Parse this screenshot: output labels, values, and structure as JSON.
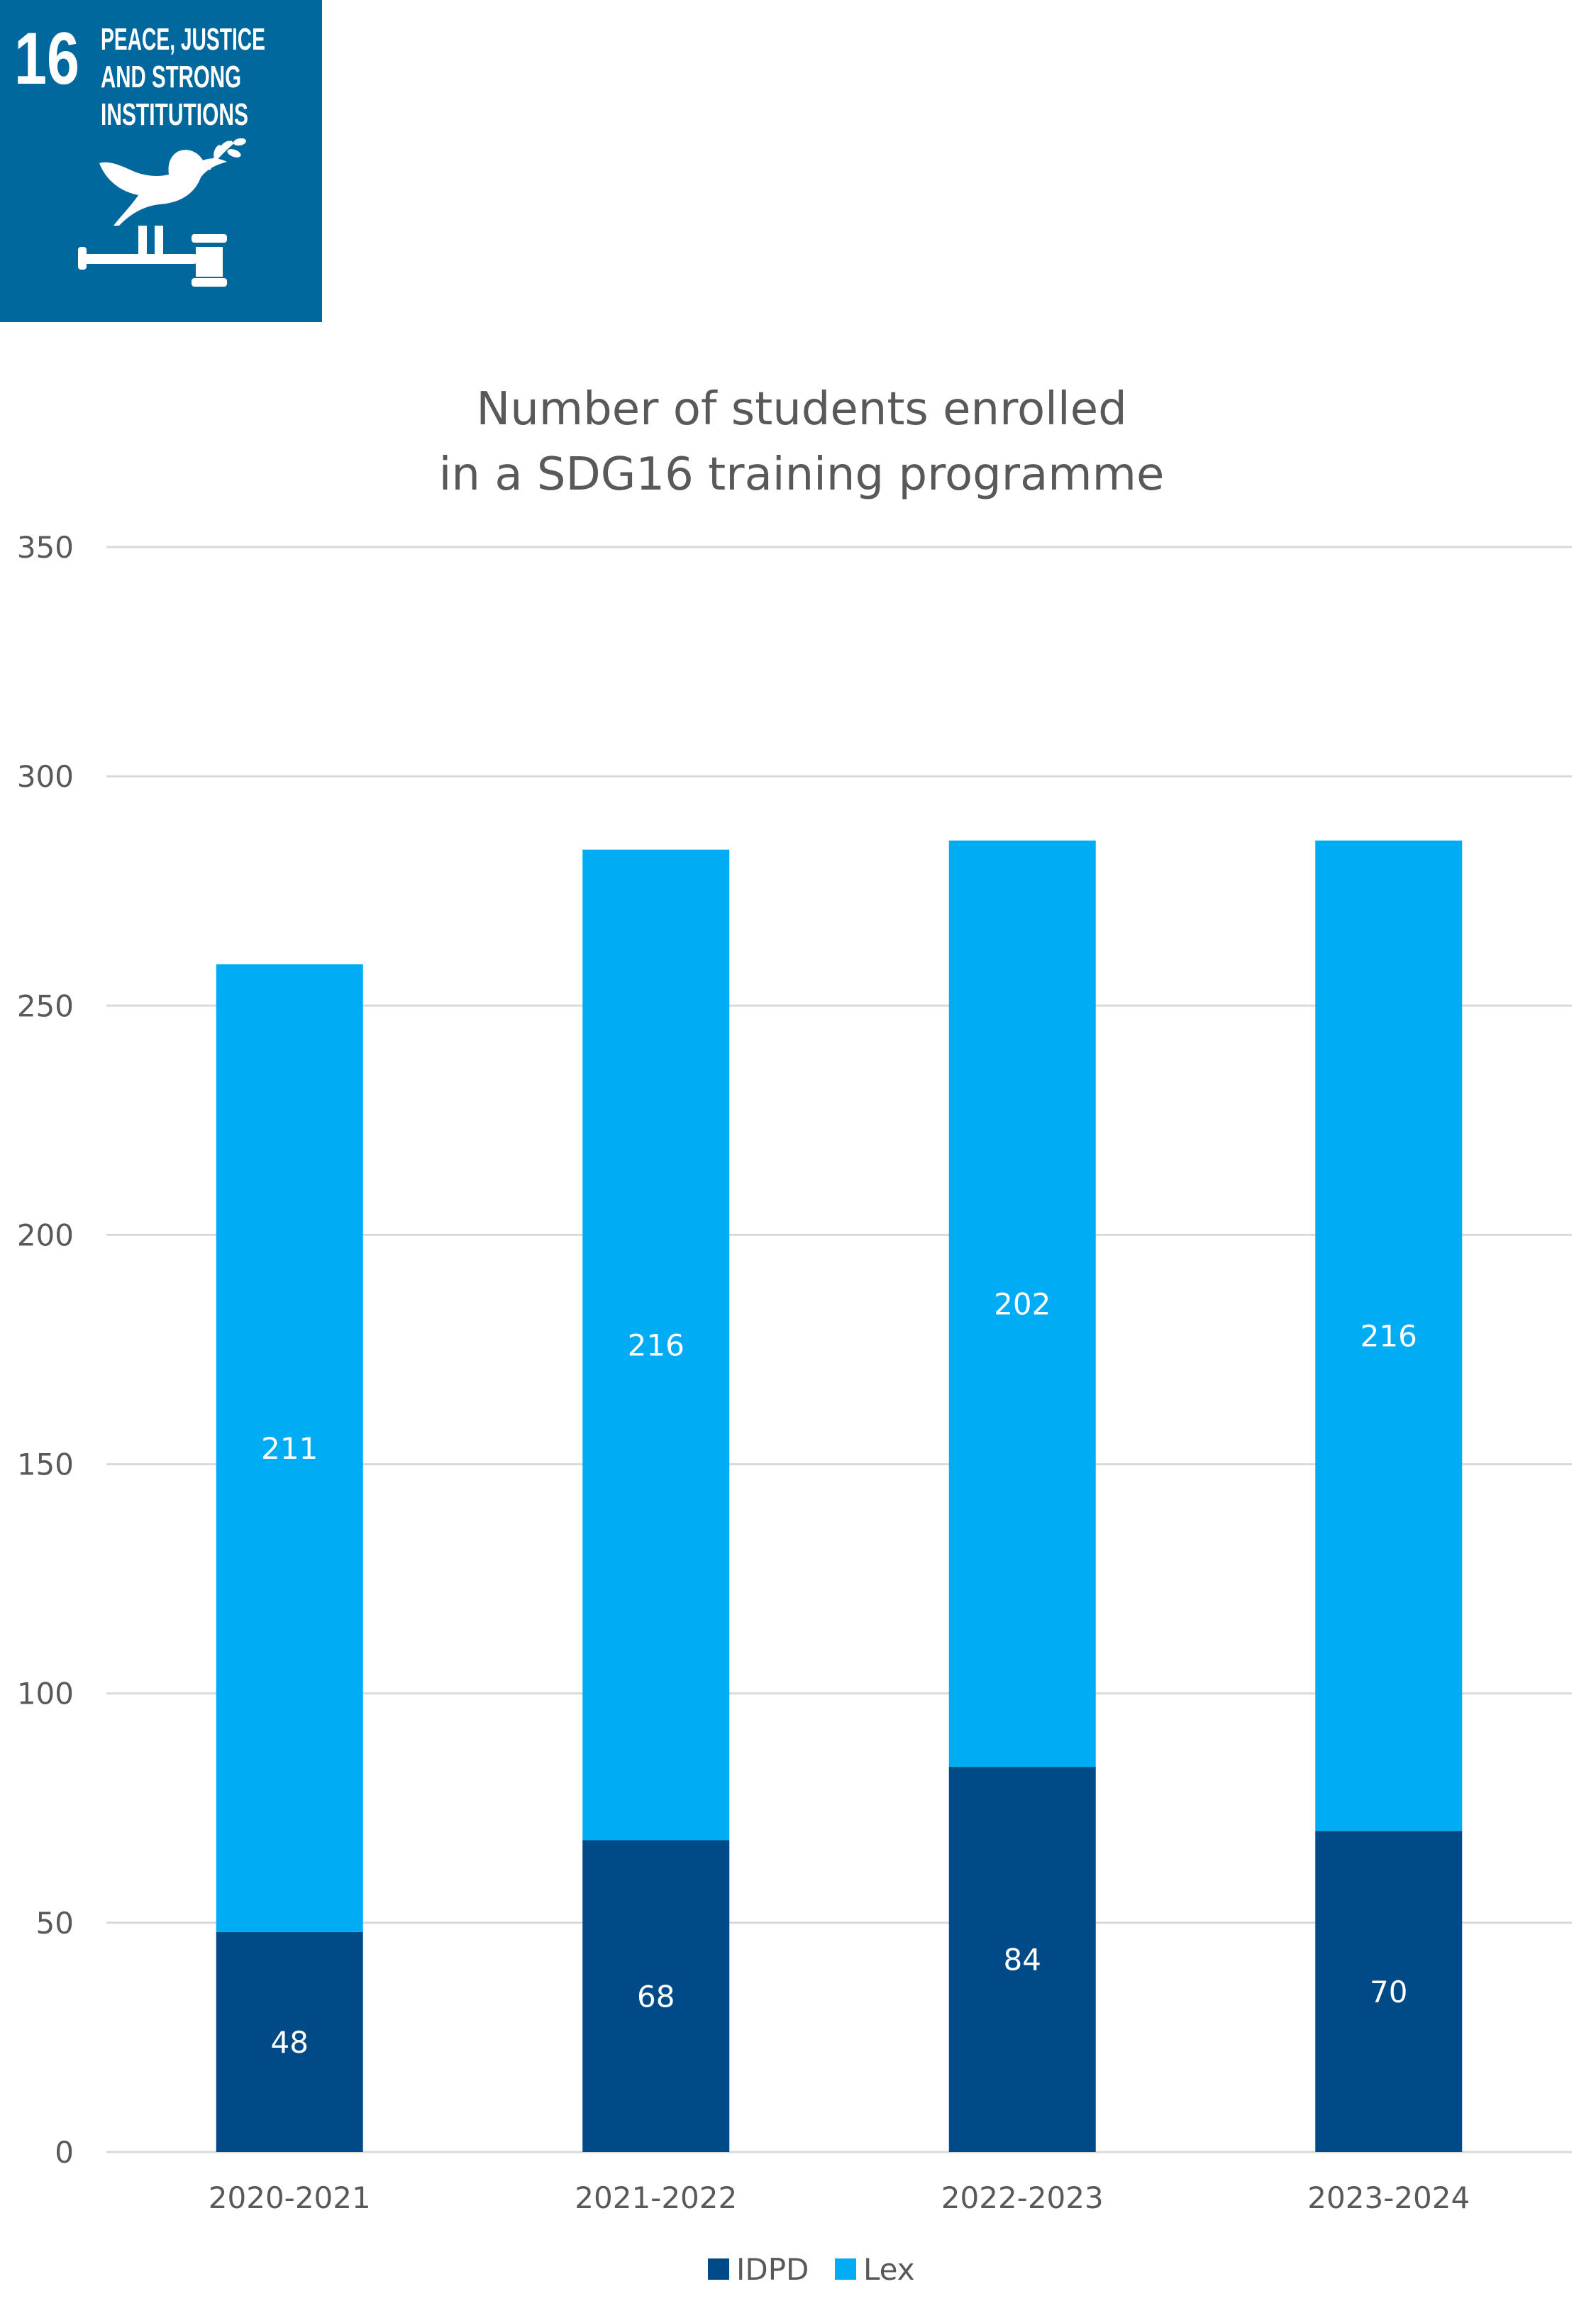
{
  "badge": {
    "number": "16",
    "lines": [
      "PEACE, JUSTICE",
      "AND STRONG",
      "INSTITUTIONS"
    ],
    "icon": "dove-gavel-icon",
    "color": "#00689d"
  },
  "chart_data": {
    "type": "bar",
    "stacked": true,
    "title": [
      "Number of students enrolled",
      "in a SDG16 training programme"
    ],
    "categories": [
      "2020-2021",
      "2021-2022",
      "2022-2023",
      "2023-2024"
    ],
    "series": [
      {
        "name": "IDPD",
        "color": "#004b87",
        "values": [
          48,
          68,
          84,
          70
        ]
      },
      {
        "name": "Lex",
        "color": "#00adf5",
        "values": [
          211,
          216,
          202,
          216
        ]
      }
    ],
    "ylim": [
      0,
      350
    ],
    "yticks": [
      0,
      50,
      100,
      150,
      200,
      250,
      300,
      350
    ],
    "xlabel": "",
    "ylabel": "",
    "grid": true,
    "legend": "bottom-center",
    "gridColor": "#d9d9d9",
    "labelColor": "#595959"
  }
}
